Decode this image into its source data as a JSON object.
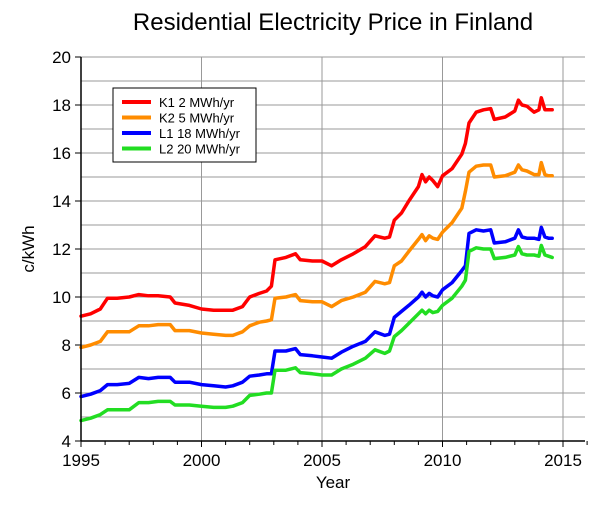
{
  "chart_data": {
    "type": "line",
    "title": "Residential Electricity Price in Finland",
    "xlabel": "Year",
    "ylabel": "c/kWh",
    "xlim": [
      1995,
      2016
    ],
    "ylim": [
      4,
      20
    ],
    "x_ticks": [
      1995,
      2000,
      2005,
      2010,
      2015
    ],
    "x_tick_labels": [
      "1995",
      "2000",
      "2005",
      "2010",
      "2015"
    ],
    "x_minor_step": 1,
    "y_ticks": [
      4,
      6,
      8,
      10,
      12,
      14,
      16,
      18,
      20
    ],
    "y_tick_labels": [
      "4",
      "6",
      "8",
      "10",
      "12",
      "14",
      "16",
      "18",
      "20"
    ],
    "y_grid_step": 1,
    "grid": true,
    "legend_position": "top-left",
    "series": [
      {
        "name": "K1 2 MWh/yr",
        "color": "#ff0000",
        "x": [
          1995,
          1995.4,
          1995.8,
          1996.1,
          1996.5,
          1997,
          1997.4,
          1997.8,
          1998.2,
          1998.7,
          1998.9,
          1999.5,
          2000,
          2000.5,
          2001,
          2001.3,
          2001.7,
          2002,
          2002.4,
          2002.7,
          2002.9,
          2003.05,
          2003.5,
          2003.9,
          2004.1,
          2004.6,
          2005,
          2005.4,
          2005.8,
          2006.3,
          2006.8,
          2007.2,
          2007.6,
          2007.8,
          2008,
          2008.3,
          2008.6,
          2009,
          2009.15,
          2009.3,
          2009.45,
          2009.6,
          2009.8,
          2010,
          2010.4,
          2010.8,
          2010.95,
          2011.1,
          2011.4,
          2011.7,
          2012,
          2012.15,
          2012.6,
          2013,
          2013.15,
          2013.3,
          2013.5,
          2013.8,
          2014,
          2014.1,
          2014.25,
          2014.4,
          2014.55
        ],
        "values": [
          9.2,
          9.3,
          9.5,
          9.95,
          9.95,
          10.0,
          10.1,
          10.05,
          10.05,
          10.0,
          9.75,
          9.65,
          9.5,
          9.45,
          9.45,
          9.45,
          9.6,
          10.0,
          10.15,
          10.25,
          10.45,
          11.55,
          11.65,
          11.8,
          11.55,
          11.5,
          11.5,
          11.3,
          11.55,
          11.8,
          12.1,
          12.55,
          12.45,
          12.5,
          13.2,
          13.5,
          14.0,
          14.6,
          15.1,
          14.8,
          15.0,
          14.85,
          14.6,
          15.05,
          15.35,
          15.95,
          16.4,
          17.25,
          17.7,
          17.8,
          17.85,
          17.4,
          17.5,
          17.75,
          18.2,
          18.0,
          17.95,
          17.7,
          17.8,
          18.3,
          17.8,
          17.8,
          17.8
        ]
      },
      {
        "name": "K2 5 MWh/yr",
        "color": "#ff8c00",
        "x": [
          1995,
          1995.4,
          1995.8,
          1996.1,
          1996.5,
          1997,
          1997.4,
          1997.8,
          1998.2,
          1998.7,
          1998.9,
          1999.5,
          2000,
          2000.5,
          2001,
          2001.3,
          2001.7,
          2002,
          2002.4,
          2002.7,
          2002.9,
          2003.05,
          2003.5,
          2003.9,
          2004.1,
          2004.6,
          2005,
          2005.4,
          2005.8,
          2006.3,
          2006.8,
          2007.2,
          2007.6,
          2007.8,
          2008,
          2008.3,
          2008.6,
          2009,
          2009.15,
          2009.3,
          2009.45,
          2009.6,
          2009.8,
          2010,
          2010.4,
          2010.8,
          2010.95,
          2011.1,
          2011.4,
          2011.7,
          2012,
          2012.15,
          2012.6,
          2013,
          2013.15,
          2013.3,
          2013.5,
          2013.8,
          2014,
          2014.1,
          2014.25,
          2014.4,
          2014.55
        ],
        "values": [
          7.9,
          8.0,
          8.15,
          8.55,
          8.55,
          8.55,
          8.8,
          8.8,
          8.85,
          8.85,
          8.6,
          8.6,
          8.5,
          8.45,
          8.4,
          8.4,
          8.55,
          8.8,
          8.95,
          9.0,
          9.05,
          9.95,
          10.0,
          10.1,
          9.85,
          9.8,
          9.8,
          9.6,
          9.85,
          10.0,
          10.2,
          10.65,
          10.55,
          10.6,
          11.3,
          11.5,
          11.9,
          12.4,
          12.6,
          12.35,
          12.55,
          12.45,
          12.4,
          12.7,
          13.1,
          13.7,
          14.4,
          15.2,
          15.45,
          15.5,
          15.5,
          15.0,
          15.05,
          15.2,
          15.5,
          15.3,
          15.25,
          15.1,
          15.1,
          15.6,
          15.1,
          15.05,
          15.05
        ]
      },
      {
        "name": "L1 18 MWh/yr",
        "color": "#0000ff",
        "x": [
          1995,
          1995.4,
          1995.8,
          1996.1,
          1996.5,
          1997,
          1997.4,
          1997.8,
          1998.2,
          1998.7,
          1998.9,
          1999.5,
          2000,
          2000.5,
          2001,
          2001.3,
          2001.7,
          2002,
          2002.4,
          2002.7,
          2002.9,
          2003.05,
          2003.5,
          2003.9,
          2004.1,
          2004.6,
          2005,
          2005.4,
          2005.8,
          2006.3,
          2006.8,
          2007.2,
          2007.6,
          2007.8,
          2008,
          2008.3,
          2008.6,
          2009,
          2009.15,
          2009.3,
          2009.45,
          2009.6,
          2009.8,
          2010,
          2010.4,
          2010.8,
          2010.95,
          2011.1,
          2011.4,
          2011.7,
          2012,
          2012.15,
          2012.6,
          2013,
          2013.15,
          2013.3,
          2013.5,
          2013.8,
          2014,
          2014.1,
          2014.25,
          2014.4,
          2014.55
        ],
        "values": [
          5.85,
          5.95,
          6.1,
          6.35,
          6.35,
          6.4,
          6.65,
          6.6,
          6.65,
          6.65,
          6.45,
          6.45,
          6.35,
          6.3,
          6.25,
          6.3,
          6.45,
          6.7,
          6.75,
          6.8,
          6.8,
          7.75,
          7.75,
          7.85,
          7.6,
          7.55,
          7.5,
          7.45,
          7.7,
          7.95,
          8.15,
          8.55,
          8.4,
          8.45,
          9.15,
          9.4,
          9.65,
          10.0,
          10.2,
          10.0,
          10.15,
          10.05,
          10.0,
          10.3,
          10.6,
          11.1,
          11.3,
          12.65,
          12.8,
          12.75,
          12.8,
          12.25,
          12.3,
          12.45,
          12.8,
          12.5,
          12.45,
          12.45,
          12.4,
          12.9,
          12.5,
          12.45,
          12.45
        ]
      },
      {
        "name": "L2 20 MWh/yr",
        "color": "#22dd22",
        "x": [
          1995,
          1995.4,
          1995.8,
          1996.1,
          1996.5,
          1997,
          1997.4,
          1997.8,
          1998.2,
          1998.7,
          1998.9,
          1999.5,
          2000,
          2000.5,
          2001,
          2001.3,
          2001.7,
          2002,
          2002.4,
          2002.7,
          2002.9,
          2003.05,
          2003.5,
          2003.9,
          2004.1,
          2004.6,
          2005,
          2005.4,
          2005.8,
          2006.3,
          2006.8,
          2007.2,
          2007.6,
          2007.8,
          2008,
          2008.3,
          2008.6,
          2009,
          2009.15,
          2009.3,
          2009.45,
          2009.6,
          2009.8,
          2010,
          2010.4,
          2010.8,
          2010.95,
          2011.1,
          2011.4,
          2011.7,
          2012,
          2012.15,
          2012.6,
          2013,
          2013.15,
          2013.3,
          2013.5,
          2013.8,
          2014,
          2014.1,
          2014.25,
          2014.4,
          2014.55
        ],
        "values": [
          4.85,
          4.95,
          5.1,
          5.3,
          5.3,
          5.3,
          5.6,
          5.6,
          5.65,
          5.65,
          5.5,
          5.5,
          5.45,
          5.4,
          5.4,
          5.45,
          5.6,
          5.9,
          5.95,
          6.0,
          6.0,
          6.95,
          6.95,
          7.05,
          6.85,
          6.8,
          6.75,
          6.75,
          7.0,
          7.2,
          7.45,
          7.8,
          7.65,
          7.75,
          8.35,
          8.6,
          8.9,
          9.3,
          9.45,
          9.3,
          9.45,
          9.35,
          9.4,
          9.65,
          9.95,
          10.45,
          10.7,
          11.9,
          12.05,
          12.0,
          12.0,
          11.6,
          11.65,
          11.75,
          12.1,
          11.8,
          11.75,
          11.75,
          11.7,
          12.15,
          11.75,
          11.7,
          11.65
        ]
      }
    ]
  }
}
